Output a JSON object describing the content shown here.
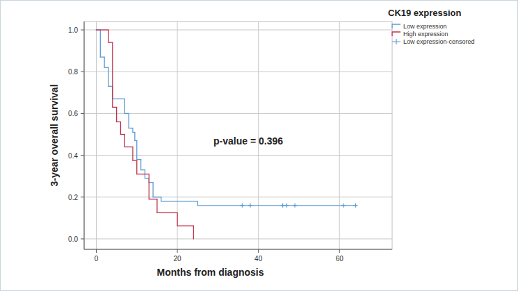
{
  "chart_data": {
    "type": "line",
    "line_style": "step",
    "x_label": "Months from diagnosis",
    "y_label": "3-year overall survival",
    "annotation": "p-value = 0.396",
    "legend_title": "CK19 expression",
    "legend": "top-right",
    "grid": true,
    "xlim": [
      -3,
      73
    ],
    "ylim": [
      -0.05,
      1.04
    ],
    "xticks": [
      0,
      20,
      40,
      60
    ],
    "yticks": [
      {
        "value": 0,
        "label": "0.0"
      },
      0.2,
      0.4,
      0.6,
      0.8,
      {
        "value": 1,
        "label": "1.0"
      }
    ],
    "series": [
      {
        "name": "Low expression",
        "color": "#5b9bd5",
        "type": "line",
        "line_style": "step",
        "x": [
          0,
          1,
          2,
          3,
          4,
          7,
          8,
          9,
          9.5,
          10,
          11,
          12,
          13,
          14,
          16,
          25,
          64
        ],
        "values": [
          1.0,
          0.87,
          0.82,
          0.73,
          0.67,
          0.6,
          0.53,
          0.51,
          0.47,
          0.38,
          0.33,
          0.29,
          0.27,
          0.2,
          0.18,
          0.16,
          0.16
        ]
      },
      {
        "name": "High expression",
        "color": "#c0304a",
        "type": "line",
        "line_style": "step",
        "x": [
          0,
          3,
          4,
          5,
          6,
          7,
          9,
          10,
          13,
          15,
          20,
          24
        ],
        "values": [
          1.0,
          0.94,
          0.63,
          0.56,
          0.5,
          0.44,
          0.375,
          0.31,
          0.19,
          0.125,
          0.0625,
          0
        ]
      },
      {
        "name": "Low expression-censored",
        "color": "#5b9bd5",
        "type": "scatter",
        "marker": "plus",
        "x": [
          36,
          38,
          46,
          47,
          49,
          61,
          64
        ],
        "values": [
          0.16,
          0.16,
          0.16,
          0.16,
          0.16,
          0.16,
          0.16
        ]
      }
    ]
  }
}
